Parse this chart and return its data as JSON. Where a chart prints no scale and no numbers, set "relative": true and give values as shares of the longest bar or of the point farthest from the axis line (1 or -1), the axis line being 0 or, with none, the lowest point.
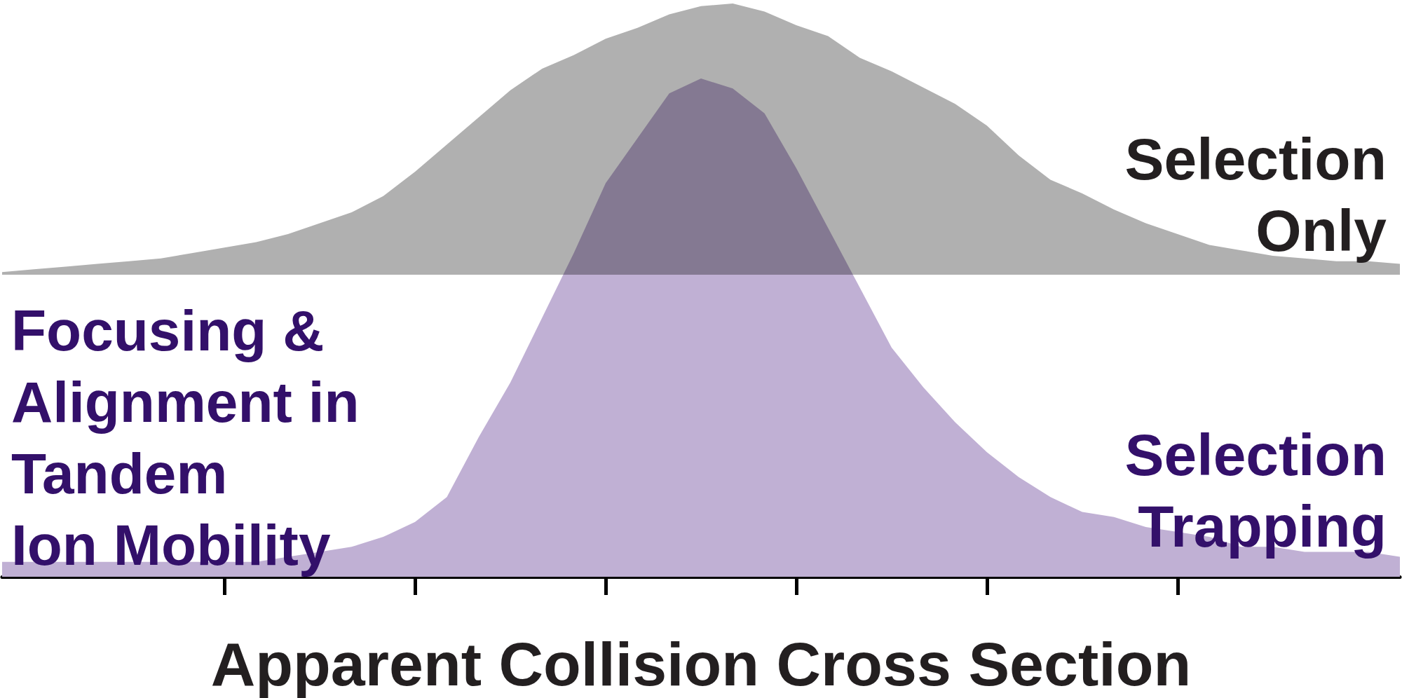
{
  "chart_data": [
    {
      "type": "area",
      "relative": true,
      "categories": [
        null,
        null,
        null,
        null,
        null,
        null,
        null,
        null,
        null,
        null,
        null,
        null,
        null,
        null,
        null,
        null,
        null,
        null,
        null,
        null,
        null,
        null,
        null,
        null,
        null,
        null,
        null,
        null,
        null,
        null,
        null,
        null,
        null,
        null,
        null,
        null,
        null,
        null,
        null,
        null,
        null,
        null,
        null,
        null,
        null
      ],
      "series": [
        {
          "name": "Selection Only",
          "color": "#b0b0b0",
          "values": [
            0.01,
            0.02,
            0.03,
            0.04,
            0.05,
            0.06,
            0.08,
            0.1,
            0.12,
            0.15,
            0.19,
            0.23,
            0.29,
            0.38,
            0.48,
            0.58,
            0.68,
            0.76,
            0.81,
            0.87,
            0.91,
            0.96,
            0.99,
            1.0,
            0.97,
            0.92,
            0.88,
            0.8,
            0.75,
            0.69,
            0.63,
            0.55,
            0.44,
            0.35,
            0.3,
            0.24,
            0.19,
            0.15,
            0.11,
            0.09,
            0.07,
            0.06,
            0.05,
            0.05,
            0.04
          ]
        }
      ]
    },
    {
      "type": "area",
      "relative": true,
      "xlabel": "Apparent Collision Cross Section",
      "categories": [
        null,
        null,
        null,
        null,
        null,
        null,
        null,
        null,
        null,
        null,
        null,
        null,
        null,
        null,
        null,
        null,
        null,
        null,
        null,
        null,
        null,
        null,
        null,
        null,
        null,
        null,
        null,
        null,
        null,
        null,
        null,
        null,
        null,
        null,
        null,
        null,
        null,
        null,
        null,
        null,
        null,
        null,
        null,
        null,
        null
      ],
      "series": [
        {
          "name": "Selection Trapping",
          "color": "#c0b0d4",
          "values": [
            0.03,
            0.03,
            0.03,
            0.03,
            0.03,
            0.03,
            0.03,
            0.03,
            0.03,
            0.04,
            0.05,
            0.06,
            0.08,
            0.11,
            0.16,
            0.28,
            0.39,
            0.52,
            0.65,
            0.79,
            0.88,
            0.97,
            1.0,
            0.98,
            0.93,
            0.82,
            0.7,
            0.58,
            0.46,
            0.38,
            0.31,
            0.25,
            0.2,
            0.16,
            0.13,
            0.12,
            0.1,
            0.09,
            0.08,
            0.06,
            0.06,
            0.05,
            0.05,
            0.05,
            0.04
          ]
        }
      ],
      "annotations": [
        "Focusing &\nAlignment in\nTandem\nIon Mobility"
      ]
    }
  ]
}
